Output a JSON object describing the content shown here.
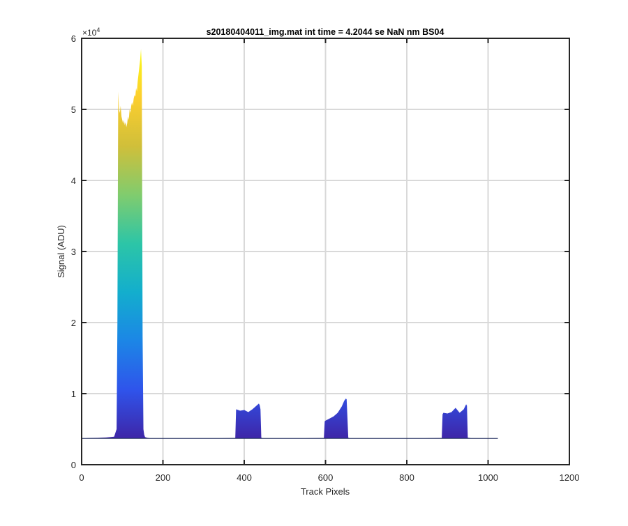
{
  "figure": {
    "title": "s20180404011_img.mat int time = 4.2044 se  NaN nm BS04"
  },
  "chart_data": {
    "type": "area",
    "title": "s20180404011_img.mat int time = 4.2044 se  NaN nm BS04",
    "xlabel": "Track Pixels",
    "ylabel": "Signal (ADU)",
    "y_exponent_label": "×10",
    "y_exponent_power": "4",
    "xlim": [
      0,
      1200
    ],
    "ylim": [
      0,
      60000
    ],
    "x_ticks": [
      0,
      200,
      400,
      600,
      800,
      1000,
      1200
    ],
    "x_tick_labels": [
      "0",
      "200",
      "400",
      "600",
      "800",
      "1000",
      "1200"
    ],
    "y_ticks": [
      0,
      10000,
      20000,
      30000,
      40000,
      50000,
      60000
    ],
    "y_tick_labels": [
      "0",
      "1",
      "2",
      "3",
      "4",
      "5",
      "6"
    ],
    "grid": true,
    "baseline": 3700,
    "colormap": [
      "#3e26a8",
      "#2f54eb",
      "#1c86e6",
      "#13aecd",
      "#2cc5a7",
      "#80cc6e",
      "#d0bf3a",
      "#fcce2e",
      "#f9fb15"
    ],
    "series": [
      {
        "x": [
          0,
          20,
          40,
          60,
          80,
          86,
          88,
          90,
          92,
          94,
          96,
          98,
          100,
          102,
          104,
          106,
          108,
          110,
          112,
          114,
          116,
          118,
          120,
          122,
          124,
          126,
          128,
          130,
          132,
          134,
          136,
          138,
          140,
          142,
          144,
          146,
          148,
          150,
          152,
          154,
          156,
          160,
          170,
          200,
          300,
          378,
          380,
          390,
          400,
          410,
          420,
          430,
          436,
          438,
          440,
          442,
          446,
          450,
          500,
          596,
          598,
          600,
          610,
          620,
          630,
          640,
          646,
          650,
          652,
          654,
          656,
          660,
          700,
          800,
          886,
          888,
          890,
          900,
          910,
          920,
          930,
          940,
          946,
          948,
          950,
          960,
          1000,
          1024
        ],
        "y": [
          3700,
          3750,
          3780,
          3820,
          3950,
          5000,
          20000,
          52500,
          50000,
          49500,
          50500,
          49000,
          48500,
          48000,
          48500,
          47800,
          48200,
          47500,
          48000,
          49000,
          48500,
          50000,
          49500,
          50500,
          51000,
          50500,
          51500,
          52000,
          51800,
          53000,
          52500,
          54000,
          55000,
          56000,
          57000,
          58500,
          56000,
          18000,
          5000,
          4200,
          3900,
          3800,
          3700,
          3700,
          3700,
          3750,
          7800,
          7600,
          7700,
          7400,
          7800,
          8300,
          8600,
          8400,
          7800,
          3800,
          3700,
          3700,
          3700,
          3750,
          6100,
          6200,
          6500,
          6800,
          7300,
          8200,
          9000,
          9300,
          9200,
          6500,
          3800,
          3700,
          3700,
          3700,
          3750,
          7100,
          7300,
          7200,
          7400,
          8000,
          7300,
          7800,
          8500,
          8300,
          3800,
          3700,
          3700,
          3700
        ]
      }
    ]
  }
}
